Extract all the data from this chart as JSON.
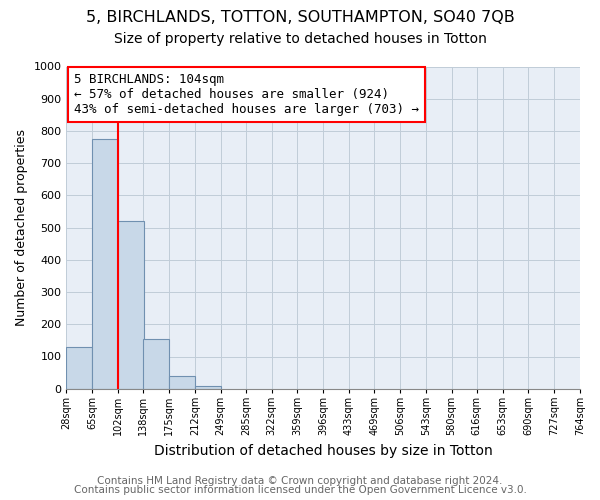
{
  "title1": "5, BIRCHLANDS, TOTTON, SOUTHAMPTON, SO40 7QB",
  "title2": "Size of property relative to detached houses in Totton",
  "xlabel": "Distribution of detached houses by size in Totton",
  "ylabel": "Number of detached properties",
  "bin_edges": [
    28,
    65,
    102,
    138,
    175,
    212,
    249,
    285,
    322,
    359,
    396,
    433,
    469,
    506,
    543,
    580,
    616,
    653,
    690,
    727,
    764
  ],
  "bin_labels": [
    "28sqm",
    "65sqm",
    "102sqm",
    "138sqm",
    "175sqm",
    "212sqm",
    "249sqm",
    "285sqm",
    "322sqm",
    "359sqm",
    "396sqm",
    "433sqm",
    "469sqm",
    "506sqm",
    "543sqm",
    "580sqm",
    "616sqm",
    "653sqm",
    "690sqm",
    "727sqm",
    "764sqm"
  ],
  "bar_heights": [
    130,
    775,
    520,
    155,
    38,
    10,
    0,
    0,
    0,
    0,
    0,
    0,
    0,
    0,
    0,
    0,
    0,
    0,
    0,
    0
  ],
  "bar_color": "#c8d8e8",
  "bar_edge_color": "#7090b0",
  "vline_x": 102,
  "vline_color": "red",
  "ylim": [
    0,
    1000
  ],
  "yticks": [
    0,
    100,
    200,
    300,
    400,
    500,
    600,
    700,
    800,
    900,
    1000
  ],
  "annotation_line1": "5 BIRCHLANDS: 104sqm",
  "annotation_line2": "← 57% of detached houses are smaller (924)",
  "annotation_line3": "43% of semi-detached houses are larger (703) →",
  "box_color": "white",
  "box_edge_color": "red",
  "footer1": "Contains HM Land Registry data © Crown copyright and database right 2024.",
  "footer2": "Contains public sector information licensed under the Open Government Licence v3.0.",
  "background_color": "#ffffff",
  "plot_bg_color": "#e8eef6",
  "grid_color": "#c0ccd8",
  "title1_fontsize": 11.5,
  "title2_fontsize": 10,
  "annotation_fontsize": 9,
  "footer_fontsize": 7.5,
  "ylabel_fontsize": 9,
  "xlabel_fontsize": 10
}
